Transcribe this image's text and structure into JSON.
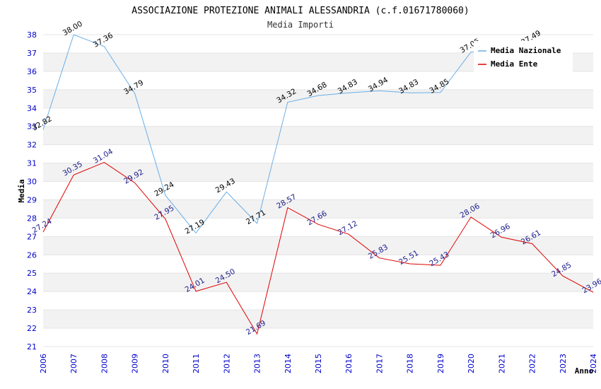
{
  "chart_data": {
    "type": "line",
    "title": "ASSOCIAZIONE PROTEZIONE ANIMALI ALESSANDRIA (c.f.01671780060)",
    "subtitle": "Media Importi",
    "xlabel": "Anno",
    "ylabel": "Media",
    "ylim": [
      21,
      38
    ],
    "yticks": [
      "21",
      "22",
      "23",
      "24",
      "25",
      "26",
      "27",
      "28",
      "29",
      "30",
      "31",
      "32",
      "33",
      "34",
      "35",
      "36",
      "37",
      "38"
    ],
    "x": [
      "2006",
      "2007",
      "2008",
      "2009",
      "2010",
      "2011",
      "2012",
      "2013",
      "2014",
      "2015",
      "2016",
      "2017",
      "2018",
      "2019",
      "2020",
      "2021",
      "2022",
      "2023",
      "2024"
    ],
    "grid": "horizontal alternating bands",
    "legend_position": "top-right",
    "series": [
      {
        "name": "Media Nazionale",
        "color": "#6aaee6",
        "values": [
          32.82,
          38.0,
          37.36,
          34.79,
          29.24,
          27.19,
          29.43,
          27.71,
          34.32,
          34.68,
          34.83,
          34.94,
          34.83,
          34.85,
          37.05,
          null,
          37.49,
          null,
          null
        ],
        "labels": [
          "32.82",
          "38.00",
          "37.36",
          "34.79",
          "29.24",
          "27.19",
          "29.43",
          "27.71",
          "34.32",
          "34.68",
          "34.83",
          "34.94",
          "34.83",
          "34.85",
          "37.05",
          "",
          "37.49",
          "",
          ""
        ]
      },
      {
        "name": "Media Ente",
        "color": "#e00000",
        "values": [
          27.24,
          30.35,
          31.04,
          29.92,
          27.95,
          24.01,
          24.5,
          21.69,
          28.57,
          27.66,
          27.12,
          25.83,
          25.51,
          25.43,
          28.06,
          26.96,
          26.61,
          24.85,
          23.96
        ],
        "labels": [
          "27.24",
          "30.35",
          "31.04",
          "29.92",
          "27.95",
          "24.01",
          "24.50",
          "21.69",
          "28.57",
          "27.66",
          "27.12",
          "25.83",
          "25.51",
          "25.43",
          "28.06",
          "26.96",
          "26.61",
          "24.85",
          "23.96"
        ]
      }
    ]
  }
}
